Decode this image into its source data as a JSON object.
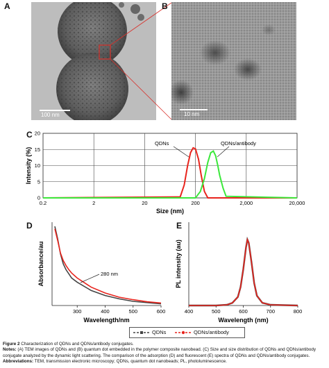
{
  "figure": {
    "panels": {
      "a": "A",
      "b": "B",
      "c": "C",
      "d": "D",
      "e": "E"
    },
    "tem_a": {
      "scale_label": "100 nm"
    },
    "tem_b": {
      "scale_label": "10 nm"
    },
    "caption": {
      "title_bold": "Figure 2",
      "title_rest": " Characterization of QDNs and QDNs/antibody conjugates.",
      "notes_label": "Notes:",
      "notes_text": " (A) TEM images of QDNs and (B) quantum dot embedded in the polymer composite nanobead. (C) Size and size distribution of QDNs and QDNs/antibody conjugate analyzed by the dynamic light scattering. The comparison of the adsorption (D) and fluorescent (E) spectra of QDNs and QDNs/antibody conjugates.",
      "abbrev_label": "Abbreviations:",
      "abbrev_text": " TEM, transmission electronic microscopy; QDNs, quantum dot nanobeads; PL, photoluminescence."
    },
    "legend": {
      "s1": "QDNs",
      "s2": "QDNs/antibody"
    }
  },
  "chart_data": [
    {
      "panel": "C",
      "type": "line",
      "xlabel": "Size (nm)",
      "ylabel": "Intensity (%)",
      "xscale": "log",
      "xlim": [
        0.2,
        20000
      ],
      "ylim": [
        0,
        20
      ],
      "xticks": [
        "0.2",
        "2",
        "20",
        "200",
        "2,000",
        "20,000"
      ],
      "yticks": [
        "0",
        "5",
        "10",
        "15",
        "20"
      ],
      "grid": true,
      "annotations": [
        "QDNs",
        "QDNs/antibody"
      ],
      "series": [
        {
          "name": "QDNs",
          "color": "#e8241d",
          "x": [
            0.2,
            100,
            120,
            140,
            160,
            180,
            200,
            230,
            260,
            300,
            350,
            20000
          ],
          "y": [
            0,
            0.3,
            4,
            10,
            14,
            15.5,
            15.2,
            12,
            7,
            2,
            0,
            0
          ]
        },
        {
          "name": "QDNs/antibody",
          "color": "#3be83b",
          "x": [
            0.2,
            200,
            250,
            300,
            350,
            400,
            450,
            500,
            550,
            600,
            700,
            800,
            20000
          ],
          "y": [
            0,
            0,
            2,
            6,
            11,
            14,
            14.5,
            13,
            10,
            7,
            3,
            0.5,
            0
          ]
        }
      ]
    },
    {
      "panel": "D",
      "type": "line",
      "xlabel": "Wavelength/nm",
      "ylabel": "Absorbance/au",
      "xlim": [
        210,
        600
      ],
      "xticks": [
        "300",
        "400",
        "500",
        "600"
      ],
      "annotation": "280 nm",
      "series": [
        {
          "name": "QDNs",
          "color": "#444444",
          "x": [
            220,
            230,
            240,
            250,
            260,
            270,
            280,
            300,
            350,
            400,
            450,
            500,
            550,
            600
          ],
          "y": [
            0.95,
            0.8,
            0.62,
            0.5,
            0.43,
            0.38,
            0.33,
            0.28,
            0.18,
            0.12,
            0.08,
            0.05,
            0.035,
            0.02
          ]
        },
        {
          "name": "QDNs/antibody",
          "color": "#e8241d",
          "x": [
            220,
            230,
            240,
            250,
            260,
            270,
            280,
            300,
            350,
            400,
            450,
            500,
            550,
            600
          ],
          "y": [
            0.92,
            0.78,
            0.63,
            0.54,
            0.48,
            0.43,
            0.39,
            0.33,
            0.22,
            0.15,
            0.1,
            0.07,
            0.045,
            0.03
          ]
        }
      ]
    },
    {
      "panel": "E",
      "type": "line",
      "xlabel": "Wavelength (nm)",
      "ylabel": "PL intensity (au)",
      "xlim": [
        400,
        800
      ],
      "xticks": [
        "400",
        "500",
        "600",
        "700",
        "800"
      ],
      "series": [
        {
          "name": "QDNs",
          "color": "#444444",
          "x": [
            400,
            500,
            540,
            560,
            580,
            590,
            600,
            610,
            615,
            620,
            630,
            640,
            650,
            670,
            700,
            800
          ],
          "y": [
            0,
            0,
            0.01,
            0.04,
            0.13,
            0.28,
            0.55,
            0.88,
            1.0,
            0.95,
            0.66,
            0.34,
            0.15,
            0.04,
            0.01,
            0
          ]
        },
        {
          "name": "QDNs/antibody",
          "color": "#e8241d",
          "x": [
            400,
            500,
            540,
            560,
            580,
            590,
            600,
            610,
            615,
            620,
            630,
            640,
            650,
            670,
            700,
            800
          ],
          "y": [
            0,
            0,
            0.01,
            0.04,
            0.13,
            0.28,
            0.55,
            0.88,
            1.0,
            0.95,
            0.66,
            0.34,
            0.15,
            0.04,
            0.01,
            0
          ]
        }
      ]
    }
  ]
}
